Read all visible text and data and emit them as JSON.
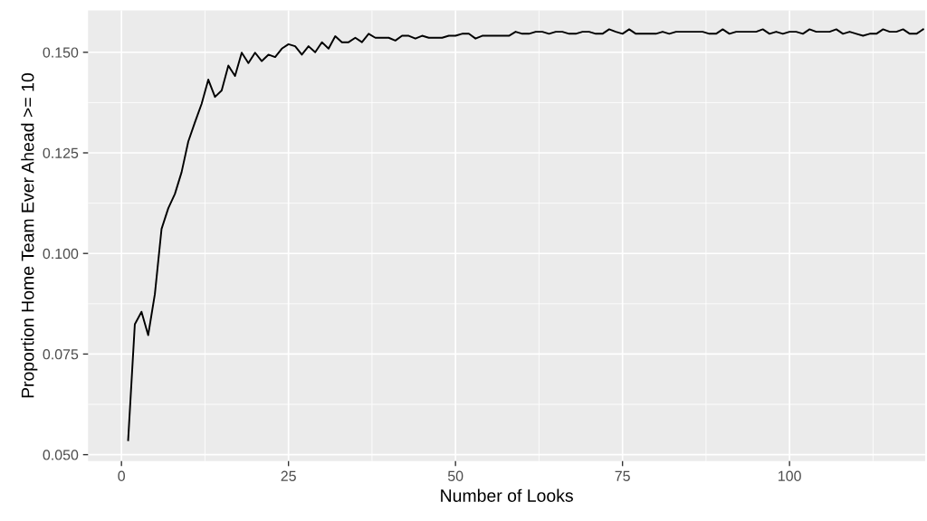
{
  "chart_data": {
    "type": "line",
    "xlabel": "Number of Looks",
    "ylabel": "Proportion Home Team Ever Ahead >= 10",
    "x": [
      1,
      2,
      3,
      4,
      5,
      6,
      7,
      8,
      9,
      10,
      11,
      12,
      13,
      14,
      15,
      16,
      17,
      18,
      19,
      20,
      21,
      22,
      23,
      24,
      25,
      26,
      27,
      28,
      29,
      30,
      31,
      32,
      33,
      34,
      35,
      36,
      37,
      38,
      39,
      40,
      41,
      42,
      43,
      44,
      45,
      46,
      47,
      48,
      49,
      50,
      51,
      52,
      53,
      54,
      55,
      56,
      57,
      58,
      59,
      60,
      61,
      62,
      63,
      64,
      65,
      66,
      67,
      68,
      69,
      70,
      71,
      72,
      73,
      74,
      75,
      76,
      77,
      78,
      79,
      80,
      81,
      82,
      83,
      84,
      85,
      86,
      87,
      88,
      89,
      90,
      91,
      92,
      93,
      94,
      95,
      96,
      97,
      98,
      99,
      100,
      101,
      102,
      103,
      104,
      105,
      106,
      107,
      108,
      109,
      110,
      111,
      112,
      113,
      114,
      115,
      116,
      117,
      118,
      119,
      120
    ],
    "series": [
      {
        "color": "#000000",
        "values": [
          0.0536,
          0.0824,
          0.0855,
          0.0797,
          0.0899,
          0.1061,
          0.1112,
          0.1148,
          0.1202,
          0.1278,
          0.1326,
          0.1372,
          0.1432,
          0.1389,
          0.1405,
          0.1467,
          0.1441,
          0.1499,
          0.1473,
          0.1499,
          0.1478,
          0.1494,
          0.1488,
          0.1509,
          0.152,
          0.1515,
          0.1494,
          0.1515,
          0.15,
          0.1525,
          0.1509,
          0.154,
          0.1525,
          0.1525,
          0.1536,
          0.1525,
          0.1546,
          0.1536,
          0.1536,
          0.1536,
          0.1529,
          0.1541,
          0.1541,
          0.1534,
          0.1541,
          0.1536,
          0.1536,
          0.1536,
          0.1541,
          0.1541,
          0.1546,
          0.1546,
          0.1534,
          0.1541,
          0.1541,
          0.1541,
          0.1541,
          0.1541,
          0.1551,
          0.1546,
          0.1546,
          0.1551,
          0.1551,
          0.1546,
          0.1551,
          0.1551,
          0.1546,
          0.1546,
          0.1551,
          0.1551,
          0.1546,
          0.1546,
          0.1557,
          0.1551,
          0.1546,
          0.1557,
          0.1546,
          0.1546,
          0.1546,
          0.1546,
          0.1551,
          0.1546,
          0.1551,
          0.1551,
          0.1551,
          0.1551,
          0.1551,
          0.1546,
          0.1546,
          0.1557,
          0.1546,
          0.1551,
          0.1551,
          0.1551,
          0.1551,
          0.1557,
          0.1546,
          0.1551,
          0.1546,
          0.1551,
          0.1551,
          0.1546,
          0.1557,
          0.1551,
          0.1551,
          0.1551,
          0.1557,
          0.1546,
          0.1551,
          0.1546,
          0.1541,
          0.1546,
          0.1546,
          0.1557,
          0.1551,
          0.1551,
          0.1557,
          0.1546,
          0.1546,
          0.1557
        ]
      }
    ],
    "xlim": [
      -5,
      120.3
    ],
    "xticks": [
      0,
      25,
      50,
      75,
      100
    ],
    "ylim": [
      0.0484,
      0.1604
    ],
    "yticks": [
      {
        "value": 0.05,
        "label": "0.050"
      },
      {
        "value": 0.075,
        "label": "0.075"
      },
      {
        "value": 0.1,
        "label": "0.100"
      },
      {
        "value": 0.125,
        "label": "0.125"
      },
      {
        "value": 0.15,
        "label": "0.150"
      }
    ],
    "grid": true
  }
}
